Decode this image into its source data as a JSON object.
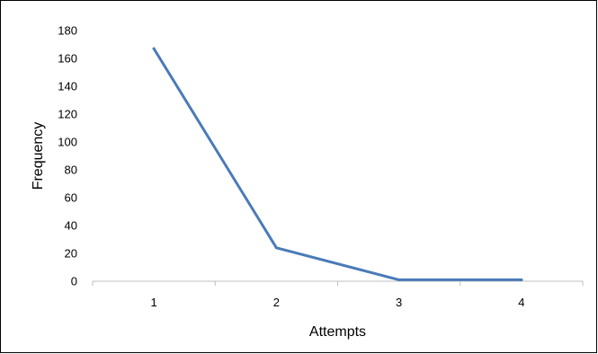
{
  "chart_data": {
    "type": "line",
    "title": "",
    "xlabel": "Attempts",
    "ylabel": "Frequency",
    "categories": [
      "1",
      "2",
      "3",
      "4"
    ],
    "series": [
      {
        "values": [
          167,
          24,
          1,
          1
        ],
        "color": "#4a7ab8"
      }
    ],
    "ylim": [
      0,
      180
    ],
    "yticks": [
      0,
      20,
      40,
      60,
      80,
      100,
      120,
      140,
      160,
      180
    ],
    "grid": false,
    "legend": "none",
    "axis_color": "#bfbfbf"
  }
}
